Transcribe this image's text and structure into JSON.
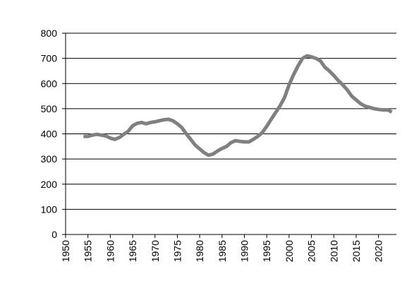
{
  "chart_data": {
    "type": "line",
    "x": [
      1954,
      1955,
      1956,
      1957,
      1958,
      1959,
      1960,
      1961,
      1962,
      1963,
      1964,
      1965,
      1966,
      1967,
      1968,
      1969,
      1970,
      1971,
      1972,
      1973,
      1974,
      1975,
      1976,
      1977,
      1978,
      1979,
      1980,
      1981,
      1982,
      1983,
      1984,
      1985,
      1986,
      1987,
      1988,
      1989,
      1990,
      1991,
      1992,
      1993,
      1994,
      1995,
      1996,
      1997,
      1998,
      1999,
      2000,
      2001,
      2002,
      2003,
      2004,
      2005,
      2006,
      2007,
      2008,
      2009,
      2010,
      2011,
      2012,
      2013,
      2014,
      2015,
      2016,
      2017,
      2018,
      2019,
      2020,
      2021,
      2022,
      2023
    ],
    "series": [
      {
        "color": "#808080",
        "values": [
          390,
          390,
          395,
          398,
          395,
          392,
          383,
          378,
          385,
          398,
          410,
          432,
          442,
          445,
          440,
          445,
          448,
          452,
          456,
          458,
          452,
          440,
          425,
          400,
          378,
          355,
          340,
          325,
          315,
          320,
          332,
          342,
          350,
          365,
          373,
          370,
          368,
          368,
          378,
          390,
          405,
          430,
          458,
          485,
          512,
          545,
          595,
          635,
          670,
          700,
          710,
          706,
          700,
          690,
          665,
          650,
          632,
          612,
          595,
          575,
          550,
          535,
          520,
          510,
          505,
          500,
          497,
          495,
          495,
          487
        ]
      }
    ],
    "xlim": [
      1950,
      2024
    ],
    "xticks": [
      1950,
      1955,
      1960,
      1965,
      1970,
      1975,
      1980,
      1985,
      1990,
      1995,
      2000,
      2005,
      2010,
      2015,
      2020
    ],
    "ylim": [
      0,
      800
    ],
    "yticks": [
      0,
      100,
      200,
      300,
      400,
      500,
      600,
      700,
      800
    ],
    "grid": true
  }
}
